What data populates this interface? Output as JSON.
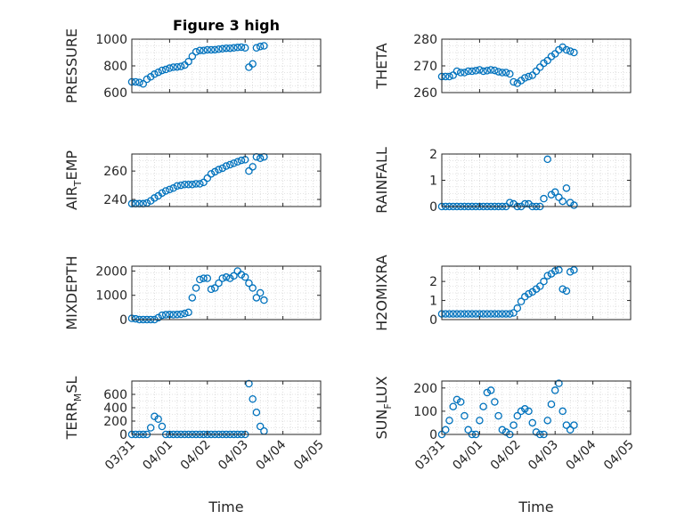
{
  "chart_data": [
    {
      "type": "scatter",
      "title": "Figure 3 high",
      "ylabel": "PRESSURE",
      "ylim": [
        600,
        1000
      ],
      "yticks": [
        "600",
        "800",
        "1000"
      ],
      "grid": true,
      "marker": "circle",
      "x": [
        0.0,
        0.1,
        0.2,
        0.3,
        0.4,
        0.5,
        0.6,
        0.7,
        0.8,
        0.9,
        1.0,
        1.1,
        1.2,
        1.3,
        1.4,
        1.5,
        1.6,
        1.7,
        1.8,
        1.9,
        2.0,
        2.1,
        2.2,
        2.3,
        2.4,
        2.5,
        2.6,
        2.7,
        2.8,
        2.9,
        3.0,
        3.1,
        3.2,
        3.3,
        3.4,
        3.5
      ],
      "y": [
        680,
        680,
        676,
        665,
        700,
        718,
        738,
        752,
        766,
        773,
        783,
        790,
        792,
        796,
        806,
        832,
        872,
        905,
        915,
        915,
        920,
        920,
        921,
        925,
        928,
        932,
        932,
        935,
        938,
        940,
        935,
        790,
        815,
        935,
        945,
        950
      ]
    },
    {
      "type": "scatter",
      "ylabel": "THETA",
      "ylim": [
        260,
        280
      ],
      "yticks": [
        "260",
        "270",
        "280"
      ],
      "grid": true,
      "marker": "circle",
      "x": [
        0.0,
        0.1,
        0.2,
        0.3,
        0.4,
        0.5,
        0.6,
        0.7,
        0.8,
        0.9,
        1.0,
        1.1,
        1.2,
        1.3,
        1.4,
        1.5,
        1.6,
        1.7,
        1.8,
        1.9,
        2.0,
        2.1,
        2.2,
        2.3,
        2.4,
        2.5,
        2.6,
        2.7,
        2.8,
        2.9,
        3.0,
        3.1,
        3.2,
        3.3,
        3.4,
        3.5
      ],
      "y": [
        266,
        266,
        266,
        266.5,
        268,
        267.5,
        267.5,
        268,
        268,
        268.2,
        268.5,
        268,
        268.2,
        268.5,
        268.3,
        267.8,
        267.5,
        267.5,
        267,
        264,
        263.5,
        264.5,
        265.5,
        266,
        266.5,
        268,
        269.5,
        271,
        272,
        273.5,
        274.5,
        276,
        277,
        276,
        275.5,
        275
      ]
    },
    {
      "type": "scatter",
      "ylabel": "AIR_TEMP",
      "ylim": [
        235,
        272
      ],
      "yticks": [
        "240",
        "260"
      ],
      "grid": true,
      "marker": "circle",
      "x": [
        0.0,
        0.1,
        0.2,
        0.3,
        0.4,
        0.5,
        0.6,
        0.7,
        0.8,
        0.9,
        1.0,
        1.1,
        1.2,
        1.3,
        1.4,
        1.5,
        1.6,
        1.7,
        1.8,
        1.9,
        2.0,
        2.1,
        2.2,
        2.3,
        2.4,
        2.5,
        2.6,
        2.7,
        2.8,
        2.9,
        3.0,
        3.1,
        3.2,
        3.3,
        3.4,
        3.5
      ],
      "y": [
        237,
        237,
        237,
        237,
        237.5,
        239,
        241,
        242.5,
        244.5,
        246,
        247,
        248,
        249.5,
        250,
        250.5,
        250.5,
        250.5,
        251,
        251,
        252,
        255,
        258,
        259.5,
        261,
        262,
        263.5,
        264.5,
        265.5,
        266.5,
        267.5,
        268,
        260,
        263,
        270,
        269,
        270
      ]
    },
    {
      "type": "scatter",
      "ylabel": "RAINFALL",
      "ylim": [
        0,
        2
      ],
      "yticks": [
        "0",
        "1",
        "2"
      ],
      "grid": true,
      "marker": "circle",
      "x": [
        0.0,
        0.1,
        0.2,
        0.3,
        0.4,
        0.5,
        0.6,
        0.7,
        0.8,
        0.9,
        1.0,
        1.1,
        1.2,
        1.3,
        1.4,
        1.5,
        1.6,
        1.7,
        1.8,
        1.9,
        2.0,
        2.1,
        2.2,
        2.3,
        2.4,
        2.5,
        2.6,
        2.7,
        2.8,
        2.9,
        3.0,
        3.1,
        3.2,
        3.3,
        3.4,
        3.5
      ],
      "y": [
        0,
        0,
        0,
        0,
        0,
        0,
        0,
        0,
        0,
        0,
        0,
        0,
        0,
        0,
        0,
        0,
        0,
        0,
        0.15,
        0.1,
        0,
        0,
        0.1,
        0.1,
        0,
        0,
        0,
        0.3,
        1.8,
        0.45,
        0.55,
        0.35,
        0.2,
        0.7,
        0.15,
        0.05
      ]
    },
    {
      "type": "scatter",
      "ylabel": "MIXDEPTH",
      "ylim": [
        0,
        2200
      ],
      "yticks": [
        "0",
        "1000",
        "2000"
      ],
      "grid": true,
      "marker": "circle",
      "x": [
        0.0,
        0.1,
        0.2,
        0.3,
        0.4,
        0.5,
        0.6,
        0.7,
        0.8,
        0.9,
        1.0,
        1.1,
        1.2,
        1.3,
        1.4,
        1.5,
        1.6,
        1.7,
        1.8,
        1.9,
        2.0,
        2.1,
        2.2,
        2.3,
        2.4,
        2.5,
        2.6,
        2.7,
        2.8,
        2.9,
        3.0,
        3.1,
        3.2,
        3.3,
        3.4,
        3.5
      ],
      "y": [
        50,
        30,
        0,
        0,
        0,
        0,
        0,
        80,
        180,
        200,
        210,
        200,
        210,
        220,
        250,
        300,
        900,
        1300,
        1650,
        1700,
        1700,
        1250,
        1300,
        1500,
        1700,
        1750,
        1700,
        1800,
        2000,
        1850,
        1750,
        1500,
        1300,
        900,
        1100,
        800
      ]
    },
    {
      "type": "scatter",
      "ylabel": "H2OMIXRA",
      "ylim": [
        0,
        2.8
      ],
      "yticks": [
        "0",
        "1",
        "2"
      ],
      "grid": true,
      "marker": "circle",
      "x": [
        0.0,
        0.1,
        0.2,
        0.3,
        0.4,
        0.5,
        0.6,
        0.7,
        0.8,
        0.9,
        1.0,
        1.1,
        1.2,
        1.3,
        1.4,
        1.5,
        1.6,
        1.7,
        1.8,
        1.9,
        2.0,
        2.1,
        2.2,
        2.3,
        2.4,
        2.5,
        2.6,
        2.7,
        2.8,
        2.9,
        3.0,
        3.1,
        3.2,
        3.3,
        3.4,
        3.5
      ],
      "y": [
        0.3,
        0.3,
        0.3,
        0.3,
        0.3,
        0.3,
        0.3,
        0.3,
        0.3,
        0.3,
        0.3,
        0.3,
        0.3,
        0.3,
        0.3,
        0.3,
        0.3,
        0.3,
        0.3,
        0.35,
        0.6,
        0.95,
        1.2,
        1.35,
        1.45,
        1.6,
        1.75,
        2.0,
        2.3,
        2.4,
        2.55,
        2.6,
        1.6,
        1.5,
        2.5,
        2.6
      ]
    },
    {
      "type": "scatter",
      "ylabel": "TERR_MSL",
      "ylim": [
        0,
        800
      ],
      "yticks": [
        "0",
        "200",
        "400",
        "600"
      ],
      "grid": true,
      "marker": "circle",
      "x": [
        0.0,
        0.1,
        0.2,
        0.3,
        0.4,
        0.5,
        0.6,
        0.7,
        0.8,
        0.9,
        1.0,
        1.1,
        1.2,
        1.3,
        1.4,
        1.5,
        1.6,
        1.7,
        1.8,
        1.9,
        2.0,
        2.1,
        2.2,
        2.3,
        2.4,
        2.5,
        2.6,
        2.7,
        2.8,
        2.9,
        3.0,
        3.1,
        3.2,
        3.3,
        3.4,
        3.5
      ],
      "y": [
        0,
        0,
        0,
        0,
        0,
        100,
        270,
        230,
        120,
        0,
        0,
        0,
        0,
        0,
        0,
        0,
        0,
        0,
        0,
        0,
        0,
        0,
        0,
        0,
        0,
        0,
        0,
        0,
        0,
        0,
        0,
        760,
        530,
        330,
        120,
        50
      ]
    },
    {
      "type": "scatter",
      "ylabel": "SUN_FLUX",
      "ylim": [
        0,
        230
      ],
      "yticks": [
        "0",
        "100",
        "200"
      ],
      "grid": true,
      "marker": "circle",
      "x": [
        0.0,
        0.1,
        0.2,
        0.3,
        0.4,
        0.5,
        0.6,
        0.7,
        0.8,
        0.9,
        1.0,
        1.1,
        1.2,
        1.3,
        1.4,
        1.5,
        1.6,
        1.7,
        1.8,
        1.9,
        2.0,
        2.1,
        2.2,
        2.3,
        2.4,
        2.5,
        2.6,
        2.7,
        2.8,
        2.9,
        3.0,
        3.1,
        3.2,
        3.3,
        3.4,
        3.5
      ],
      "y": [
        0,
        20,
        60,
        120,
        150,
        140,
        80,
        20,
        0,
        0,
        60,
        120,
        180,
        190,
        140,
        80,
        20,
        10,
        0,
        40,
        80,
        100,
        110,
        100,
        50,
        10,
        0,
        0,
        60,
        130,
        190,
        220,
        100,
        40,
        20,
        40
      ]
    }
  ],
  "x_axis": {
    "ticks": [
      "03/31",
      "04/01",
      "04/02",
      "04/03",
      "04/04",
      "04/05"
    ],
    "label": "Time"
  },
  "colors": {
    "marker": "#0072bd",
    "axes": "#262626",
    "grid": "#c8c8c8"
  }
}
